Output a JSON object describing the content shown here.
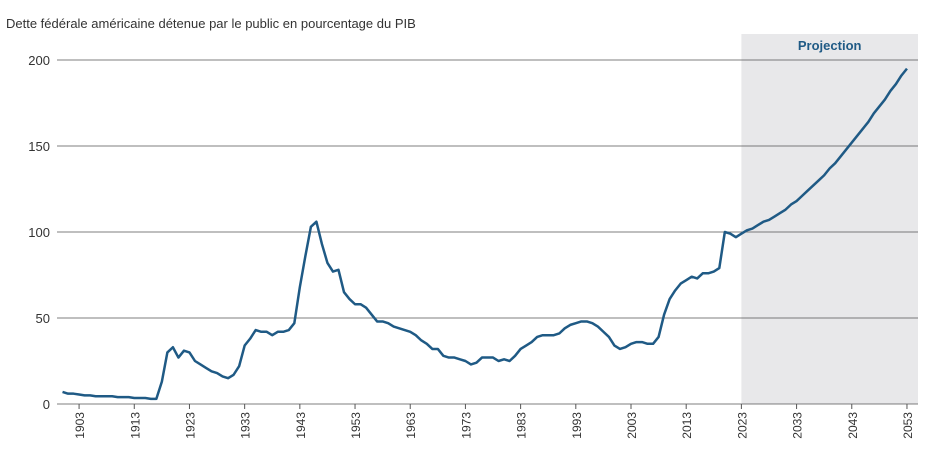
{
  "chart_data": {
    "type": "line",
    "title": "Dette fédérale américaine détenue par le public en pourcentage du PIB",
    "x": [
      1900,
      1901,
      1902,
      1903,
      1904,
      1905,
      1906,
      1907,
      1908,
      1909,
      1910,
      1911,
      1912,
      1913,
      1914,
      1915,
      1916,
      1917,
      1918,
      1919,
      1920,
      1921,
      1922,
      1923,
      1924,
      1925,
      1926,
      1927,
      1928,
      1929,
      1930,
      1931,
      1932,
      1933,
      1934,
      1935,
      1936,
      1937,
      1938,
      1939,
      1940,
      1941,
      1942,
      1943,
      1944,
      1945,
      1946,
      1947,
      1948,
      1949,
      1950,
      1951,
      1952,
      1953,
      1954,
      1955,
      1956,
      1957,
      1958,
      1959,
      1960,
      1961,
      1962,
      1963,
      1964,
      1965,
      1966,
      1967,
      1968,
      1969,
      1970,
      1971,
      1972,
      1973,
      1974,
      1975,
      1976,
      1977,
      1978,
      1979,
      1980,
      1981,
      1982,
      1983,
      1984,
      1985,
      1986,
      1987,
      1988,
      1989,
      1990,
      1991,
      1992,
      1993,
      1994,
      1995,
      1996,
      1997,
      1998,
      1999,
      2000,
      2001,
      2002,
      2003,
      2004,
      2005,
      2006,
      2007,
      2008,
      2009,
      2010,
      2011,
      2012,
      2013,
      2014,
      2015,
      2016,
      2017,
      2018,
      2019,
      2020,
      2021,
      2022,
      2023,
      2024,
      2025,
      2026,
      2027,
      2028,
      2029,
      2030,
      2031,
      2032,
      2033,
      2034,
      2035,
      2036,
      2037,
      2038,
      2039,
      2040,
      2041,
      2042,
      2043,
      2044,
      2045,
      2046,
      2047,
      2048,
      2049,
      2050,
      2051,
      2052,
      2053
    ],
    "series": [
      {
        "color": "#1f5a85",
        "values": [
          7,
          6,
          6,
          5.5,
          5,
          5,
          4.5,
          4.5,
          4.5,
          4.5,
          4,
          4,
          4,
          3.5,
          3.5,
          3.5,
          3,
          3,
          13,
          30,
          33,
          27,
          31,
          30,
          25,
          23,
          21,
          19,
          18,
          16,
          15,
          17,
          22,
          34,
          38,
          43,
          42,
          42,
          40,
          42,
          42,
          43,
          47,
          68,
          86,
          103,
          106,
          93,
          82,
          77,
          78,
          65,
          61,
          58,
          58,
          56,
          52,
          48,
          48,
          47,
          45,
          44,
          43,
          42,
          40,
          37,
          35,
          32,
          32,
          28,
          27,
          27,
          26,
          25,
          23,
          24,
          27,
          27,
          27,
          25,
          26,
          25,
          28,
          32,
          34,
          36,
          39,
          40,
          40,
          40,
          41,
          44,
          46,
          47,
          48,
          48,
          47,
          45,
          42,
          39,
          34,
          32,
          33,
          35,
          36,
          36,
          35,
          35,
          39,
          52,
          61,
          66,
          70,
          72,
          74,
          73,
          76,
          76,
          77,
          79,
          100,
          99,
          97,
          99,
          101,
          102,
          104,
          106,
          107,
          109,
          111,
          113,
          116,
          118,
          121,
          124,
          127,
          130,
          133,
          137,
          140,
          144,
          148,
          152,
          156,
          160,
          164,
          169,
          173,
          177,
          182,
          186,
          191,
          195
        ]
      }
    ],
    "xlim": [
      1899,
      2055
    ],
    "xticks": [
      1903,
      1913,
      1923,
      1933,
      1943,
      1953,
      1963,
      1973,
      1983,
      1993,
      2003,
      2013,
      2023,
      2033,
      2043,
      2053
    ],
    "ylim": [
      0,
      200
    ],
    "yticks": [
      0,
      50,
      100,
      150,
      200
    ],
    "grid": true,
    "shaded_region": {
      "label": "Projection",
      "start": 2023,
      "end": 2055,
      "color": "#e8e8ea"
    }
  }
}
